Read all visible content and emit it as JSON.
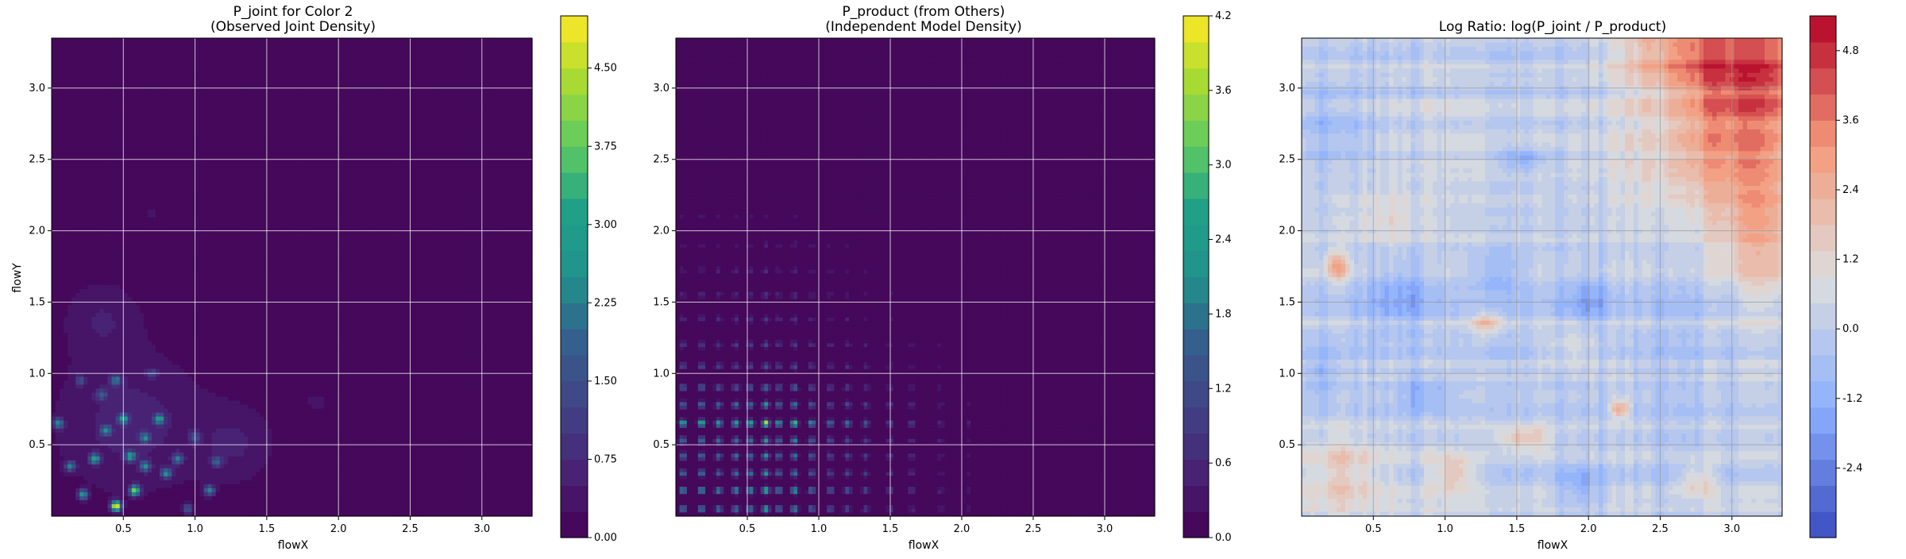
{
  "chart_data": [
    {
      "type": "heatmap",
      "title_lines": [
        "P_joint for Color 2",
        "(Observed Joint Density)"
      ],
      "xlabel": "flowX",
      "ylabel": "flowY",
      "xlim": [
        0.0,
        3.35
      ],
      "ylim": [
        0.0,
        3.35
      ],
      "xticks": [
        "0.5",
        "1.0",
        "1.5",
        "2.0",
        "2.5",
        "3.0"
      ],
      "yticks": [
        "0.5",
        "1.0",
        "1.5",
        "2.0",
        "2.5",
        "3.0"
      ],
      "grid": true,
      "colormap": "viridis",
      "colorbar": {
        "range": [
          0.0,
          5.0
        ],
        "ticks": [
          "0.00",
          "0.75",
          "1.50",
          "2.25",
          "3.00",
          "3.75",
          "4.50"
        ]
      },
      "base_value": 0.0,
      "peaks": [
        {
          "x": 0.05,
          "y": 0.65,
          "value": 2.4
        },
        {
          "x": 0.13,
          "y": 0.35,
          "value": 2.1
        },
        {
          "x": 0.22,
          "y": 0.15,
          "value": 2.6
        },
        {
          "x": 0.3,
          "y": 0.4,
          "value": 2.8
        },
        {
          "x": 0.38,
          "y": 0.6,
          "value": 2.2
        },
        {
          "x": 0.45,
          "y": 0.07,
          "value": 4.9
        },
        {
          "x": 0.45,
          "y": 0.95,
          "value": 2.0
        },
        {
          "x": 0.5,
          "y": 0.68,
          "value": 2.5
        },
        {
          "x": 0.55,
          "y": 0.42,
          "value": 2.6
        },
        {
          "x": 0.58,
          "y": 0.18,
          "value": 3.9
        },
        {
          "x": 0.65,
          "y": 0.35,
          "value": 2.3
        },
        {
          "x": 0.65,
          "y": 0.55,
          "value": 2.1
        },
        {
          "x": 0.75,
          "y": 0.68,
          "value": 2.7
        },
        {
          "x": 0.8,
          "y": 0.3,
          "value": 2.4
        },
        {
          "x": 0.88,
          "y": 0.4,
          "value": 2.0
        },
        {
          "x": 1.1,
          "y": 0.18,
          "value": 2.3
        },
        {
          "x": 1.15,
          "y": 0.38,
          "value": 1.6
        },
        {
          "x": 1.0,
          "y": 0.55,
          "value": 1.4
        },
        {
          "x": 0.35,
          "y": 0.85,
          "value": 1.4
        },
        {
          "x": 0.2,
          "y": 0.95,
          "value": 1.2
        },
        {
          "x": 0.95,
          "y": 0.05,
          "value": 1.6
        },
        {
          "x": 0.7,
          "y": 1.0,
          "value": 1.0
        }
      ],
      "low_regions": [
        {
          "x": 0.55,
          "y": 0.65,
          "rx": 0.7,
          "ry": 0.65,
          "value": 0.6
        },
        {
          "x": 0.35,
          "y": 1.4,
          "rx": 0.35,
          "ry": 0.35,
          "value": 0.45
        },
        {
          "x": 1.3,
          "y": 0.5,
          "rx": 0.35,
          "ry": 0.35,
          "value": 0.45
        },
        {
          "x": 0.7,
          "y": 2.12,
          "rx": 0.06,
          "ry": 0.05,
          "value": 0.5
        },
        {
          "x": 1.85,
          "y": 0.8,
          "rx": 0.1,
          "ry": 0.08,
          "value": 0.4
        }
      ]
    },
    {
      "type": "heatmap",
      "title_lines": [
        "P_product (from Others)",
        "(Independent Model Density)"
      ],
      "xlabel": "flowX",
      "ylabel": "",
      "xlim": [
        0.0,
        3.35
      ],
      "ylim": [
        0.0,
        3.35
      ],
      "xticks": [
        "0.5",
        "1.0",
        "1.5",
        "2.0",
        "2.5",
        "3.0"
      ],
      "yticks": [
        "0.5",
        "1.0",
        "1.5",
        "2.0",
        "2.5",
        "3.0"
      ],
      "grid": true,
      "colormap": "viridis",
      "colorbar": {
        "range": [
          0.0,
          4.2
        ],
        "ticks": [
          "0.0",
          "0.6",
          "1.2",
          "1.8",
          "2.4",
          "3.0",
          "3.6",
          "4.2"
        ]
      },
      "base_value": 0.0,
      "marginal_x": [
        {
          "x": 0.05,
          "w": 1.2
        },
        {
          "x": 0.18,
          "w": 1.3
        },
        {
          "x": 0.3,
          "w": 1.1
        },
        {
          "x": 0.42,
          "w": 1.2
        },
        {
          "x": 0.52,
          "w": 1.25
        },
        {
          "x": 0.63,
          "w": 1.6
        },
        {
          "x": 0.72,
          "w": 1.1
        },
        {
          "x": 0.83,
          "w": 1.35
        },
        {
          "x": 0.95,
          "w": 1.0
        },
        {
          "x": 1.08,
          "w": 0.8
        },
        {
          "x": 1.2,
          "w": 0.75
        },
        {
          "x": 1.33,
          "w": 0.6
        },
        {
          "x": 1.5,
          "w": 0.5
        },
        {
          "x": 1.65,
          "w": 0.4
        },
        {
          "x": 1.85,
          "w": 0.3
        },
        {
          "x": 2.05,
          "w": 0.2
        }
      ],
      "marginal_y": [
        {
          "y": 0.05,
          "w": 1.1
        },
        {
          "y": 0.18,
          "w": 1.3
        },
        {
          "y": 0.3,
          "w": 1.0
        },
        {
          "y": 0.42,
          "w": 1.0
        },
        {
          "y": 0.53,
          "w": 1.05
        },
        {
          "y": 0.65,
          "w": 1.6
        },
        {
          "y": 0.78,
          "w": 1.0
        },
        {
          "y": 0.9,
          "w": 0.8
        },
        {
          "y": 1.05,
          "w": 0.6
        },
        {
          "y": 1.2,
          "w": 0.5
        },
        {
          "y": 1.38,
          "w": 0.4
        },
        {
          "y": 1.55,
          "w": 0.35
        },
        {
          "y": 1.72,
          "w": 0.28
        },
        {
          "y": 1.9,
          "w": 0.22
        },
        {
          "y": 2.1,
          "w": 0.15
        }
      ],
      "peak_value": 4.2
    },
    {
      "type": "heatmap",
      "title_lines": [
        "Log Ratio: log(P_joint / P_product)"
      ],
      "xlabel": "flowX",
      "ylabel": "",
      "xlim": [
        0.0,
        3.35
      ],
      "ylim": [
        0.0,
        3.35
      ],
      "xticks": [
        "0.5",
        "1.0",
        "1.5",
        "2.0",
        "2.5",
        "3.0"
      ],
      "yticks": [
        "0.5",
        "1.0",
        "1.5",
        "2.0",
        "2.5",
        "3.0"
      ],
      "grid": true,
      "colormap": "coolwarm",
      "colorbar": {
        "range": [
          -3.6,
          5.4
        ],
        "ticks": [
          "-2.4",
          "-1.2",
          "0.0",
          "1.2",
          "2.4",
          "3.6",
          "4.8"
        ]
      },
      "base_value": 0.0,
      "hot_regions": [
        {
          "x": 3.2,
          "y": 3.2,
          "rx": 0.5,
          "ry": 0.45,
          "value": 3.6
        },
        {
          "x": 2.9,
          "y": 2.6,
          "rx": 0.55,
          "ry": 0.6,
          "value": 2.4
        },
        {
          "x": 2.6,
          "y": 3.25,
          "rx": 0.4,
          "ry": 0.25,
          "value": 2.2
        },
        {
          "x": 3.2,
          "y": 2.0,
          "rx": 0.25,
          "ry": 0.6,
          "value": 1.8
        },
        {
          "x": 0.25,
          "y": 1.75,
          "rx": 0.08,
          "ry": 0.1,
          "value": 2.4
        },
        {
          "x": 2.22,
          "y": 0.75,
          "rx": 0.06,
          "ry": 0.06,
          "value": 3.0
        },
        {
          "x": 1.3,
          "y": 1.35,
          "rx": 0.1,
          "ry": 0.08,
          "value": 1.9
        },
        {
          "x": 1.55,
          "y": 0.55,
          "rx": 0.2,
          "ry": 0.08,
          "value": 2.0
        },
        {
          "x": 0.3,
          "y": 0.3,
          "rx": 0.3,
          "ry": 0.25,
          "value": 1.5
        },
        {
          "x": 1.05,
          "y": 0.3,
          "rx": 0.15,
          "ry": 0.12,
          "value": 1.8
        },
        {
          "x": 2.75,
          "y": 0.25,
          "rx": 0.12,
          "ry": 0.12,
          "value": 1.6
        },
        {
          "x": 1.9,
          "y": 1.2,
          "rx": 0.2,
          "ry": 0.15,
          "value": 1.0
        },
        {
          "x": 0.6,
          "y": 2.1,
          "rx": 0.25,
          "ry": 0.2,
          "value": 0.9
        }
      ],
      "cold_regions": [
        {
          "x": 0.7,
          "y": 1.55,
          "rx": 0.25,
          "ry": 0.25,
          "value": -1.2
        },
        {
          "x": 0.2,
          "y": 2.7,
          "rx": 0.25,
          "ry": 0.35,
          "value": -1.0
        },
        {
          "x": 1.55,
          "y": 2.5,
          "rx": 0.15,
          "ry": 0.08,
          "value": -1.4
        },
        {
          "x": 0.85,
          "y": 0.85,
          "rx": 0.2,
          "ry": 0.15,
          "value": -1.1
        },
        {
          "x": 1.35,
          "y": 1.7,
          "rx": 0.2,
          "ry": 0.15,
          "value": -1.0
        },
        {
          "x": 2.0,
          "y": 1.5,
          "rx": 0.15,
          "ry": 0.2,
          "value": -1.2
        },
        {
          "x": 1.95,
          "y": 0.2,
          "rx": 0.15,
          "ry": 0.15,
          "value": -1.3
        },
        {
          "x": 0.15,
          "y": 1.0,
          "rx": 0.15,
          "ry": 0.2,
          "value": -0.9
        }
      ]
    }
  ]
}
